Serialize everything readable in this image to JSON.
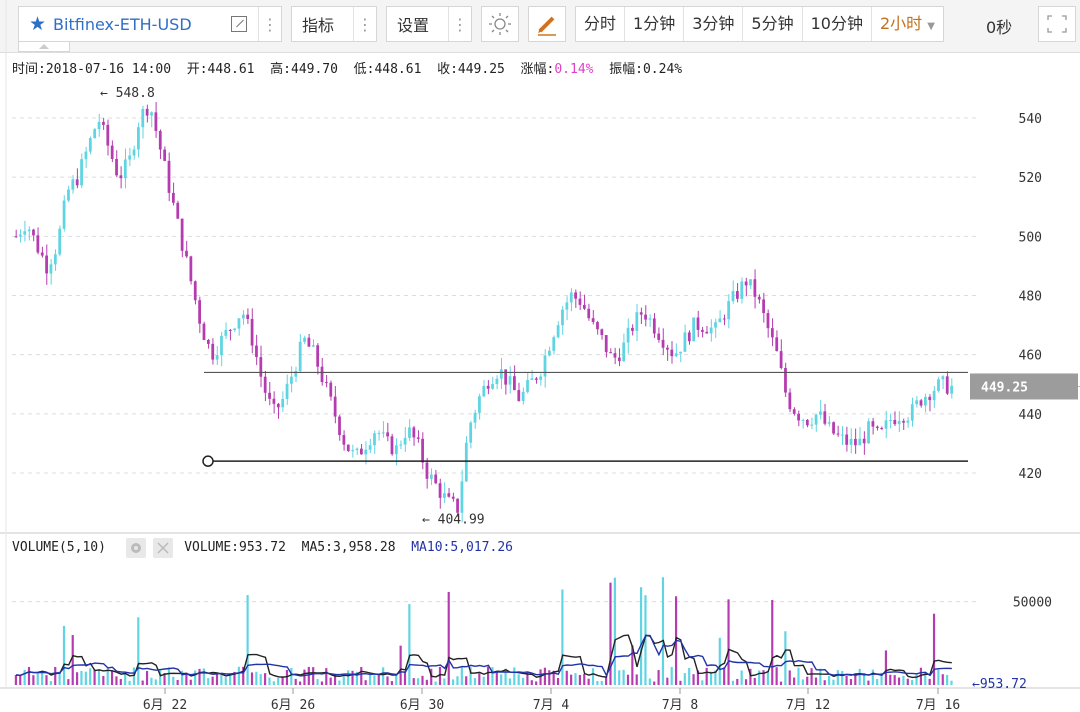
{
  "toolbar": {
    "symbol": "Bitfinex-ETH-USD",
    "indicator_label": "指标",
    "settings_label": "设置",
    "intervals": [
      "分时",
      "1分钟",
      "3分钟",
      "5分钟",
      "10分钟",
      "2小时"
    ],
    "active_interval": "2小时",
    "countdown": "0秒"
  },
  "ohlc": {
    "time_label": "时间:",
    "time": "2018-07-16 14:00",
    "open_label": "开:",
    "open": "448.61",
    "high_label": "高:",
    "high": "449.70",
    "low_label": "低:",
    "low": "448.61",
    "close_label": "收:",
    "close": "449.25",
    "change_label": "涨幅:",
    "change": "0.14%",
    "amplitude_label": "振幅:",
    "amplitude": "0.24%"
  },
  "volume_info": {
    "indicator": "VOLUME(5,10)",
    "volume_label": "VOLUME:",
    "volume": "953.72",
    "ma5_label": "MA5:",
    "ma5": "3,958.28",
    "ma10_label": "MA10:",
    "ma10": "5,017.26"
  },
  "chart_data": {
    "type": "candlestick",
    "y_ticks": [
      "540",
      "520",
      "500",
      "480",
      "460",
      "440",
      "420"
    ],
    "y_range": [
      404,
      550
    ],
    "x_ticks": [
      "6月 22",
      "6月 26",
      "6月 30",
      "7月 4",
      "7月 8",
      "7月 12",
      "7月 16"
    ],
    "current_price": "449.25",
    "max_label": "548.8",
    "min_label": "404.99",
    "high_marker_price": 548.8,
    "low_marker_price": 404.99,
    "horizontal_lines": [
      454,
      424
    ],
    "price_path": [
      500,
      505,
      497,
      490,
      497,
      515,
      520,
      530,
      540,
      530,
      520,
      525,
      540,
      545,
      530,
      515,
      500,
      485,
      470,
      460,
      465,
      470,
      475,
      465,
      450,
      440,
      445,
      455,
      465,
      460,
      450,
      440,
      430,
      425,
      430,
      435,
      430,
      428,
      435,
      430,
      420,
      415,
      410,
      408,
      435,
      445,
      452,
      455,
      450,
      445,
      450,
      455,
      465,
      475,
      480,
      478,
      470,
      465,
      458,
      462,
      470,
      475,
      470,
      465,
      460,
      465,
      470,
      470,
      468,
      475,
      480,
      485,
      480,
      470,
      460,
      445,
      440,
      438,
      440,
      435,
      432,
      430,
      430,
      435,
      432,
      438,
      440,
      440,
      445,
      448,
      450,
      449
    ],
    "volume_ticks": [
      "50000"
    ],
    "current_volume": "953.72",
    "colors": {
      "up": "#5fd4e2",
      "down": "#b53cb0",
      "ma5": "#222222",
      "ma10": "#2233aa",
      "pink": "#e040c8"
    }
  }
}
